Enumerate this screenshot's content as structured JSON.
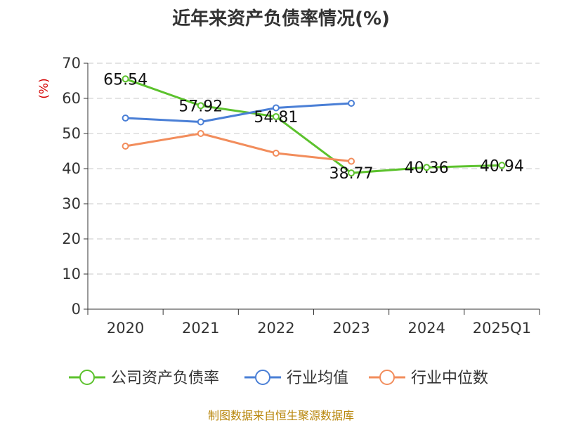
{
  "chart_data": {
    "type": "line",
    "title": "近年来资产负债率情况(%)",
    "y_unit": "(%)",
    "categories": [
      "2020",
      "2021",
      "2022",
      "2023",
      "2024",
      "2025Q1"
    ],
    "ylim": [
      0,
      70
    ],
    "yticks": [
      0,
      10,
      20,
      30,
      40,
      50,
      60,
      70
    ],
    "grid": true,
    "legend_position": "bottom",
    "series": [
      {
        "name": "公司资产负债率",
        "color": "#5cc22d",
        "values": [
          65.54,
          57.92,
          54.81,
          38.77,
          40.36,
          40.94
        ],
        "labels": [
          "65.54",
          "57.92",
          "54.81",
          "38.77",
          "40.36",
          "40.94"
        ]
      },
      {
        "name": "行业均值",
        "color": "#4a7fd6",
        "values": [
          54.4,
          53.3,
          57.3,
          58.6,
          null,
          null
        ]
      },
      {
        "name": "行业中位数",
        "color": "#f28d5c",
        "values": [
          46.4,
          50.0,
          44.4,
          42.1,
          null,
          null
        ]
      }
    ]
  },
  "source_note": "制图数据来自恒生聚源数据库"
}
